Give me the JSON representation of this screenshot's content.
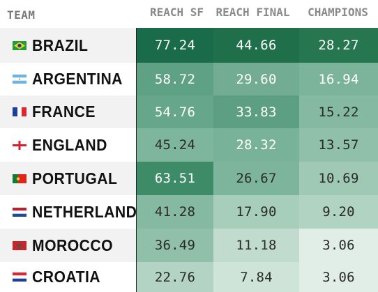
{
  "header": {
    "team": "TEAM",
    "columns": [
      "REACH SF",
      "REACH FINAL",
      "CHAMPIONS"
    ]
  },
  "rows": [
    {
      "team": "BRAZIL",
      "flag": "brazil-flag-icon",
      "values": [
        "77.24",
        "44.66",
        "28.27"
      ],
      "colors": [
        "#1a6b49",
        "#1f6f4b",
        "#26774f"
      ]
    },
    {
      "team": "ARGENTINA",
      "flag": "argentina-flag-icon",
      "values": [
        "58.72",
        "29.60",
        "16.94"
      ],
      "colors": [
        "#5ea184",
        "#72ad93",
        "#7cb39b"
      ]
    },
    {
      "team": "FRANCE",
      "flag": "france-flag-icon",
      "values": [
        "54.76",
        "33.83",
        "15.22"
      ],
      "colors": [
        "#66a68a",
        "#5c9f82",
        "#86b9a2"
      ]
    },
    {
      "team": "ENGLAND",
      "flag": "england-flag-icon",
      "values": [
        "45.24",
        "28.32",
        "13.57"
      ],
      "colors": [
        "#7eb59d",
        "#78b298",
        "#90c0a9"
      ]
    },
    {
      "team": "PORTUGAL",
      "flag": "portugal-flag-icon",
      "values": [
        "63.51",
        "26.67",
        "10.69"
      ],
      "colors": [
        "#3d8b67",
        "#7db59c",
        "#a0c9b5"
      ]
    },
    {
      "team": "NETHERLANDS",
      "flag": "netherlands-flag-icon",
      "values": [
        "41.28",
        "17.90",
        "9.20"
      ],
      "colors": [
        "#86b9a1",
        "#a7cebb",
        "#b0d3c2"
      ]
    },
    {
      "team": "MOROCCO",
      "flag": "morocco-flag-icon",
      "values": [
        "36.49",
        "11.18",
        "3.06"
      ],
      "colors": [
        "#91c0aa",
        "#c1dccf",
        "#e1eee7"
      ]
    },
    {
      "team": "CROATIA",
      "flag": "croatia-flag-icon",
      "values": [
        "22.76",
        "7.84",
        "3.06"
      ],
      "colors": [
        "#b3d4c4",
        "#cfe4d9",
        "#e1eee7"
      ]
    }
  ]
}
